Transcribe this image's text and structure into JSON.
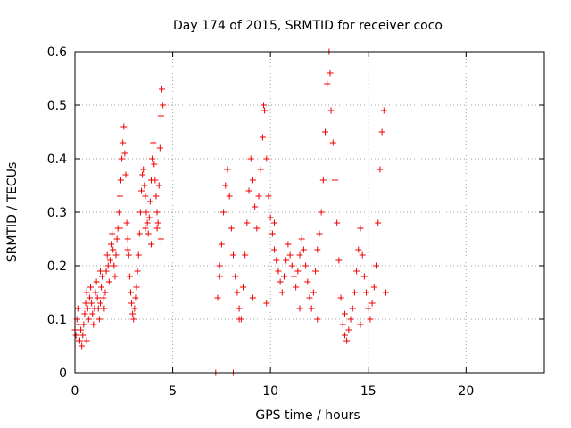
{
  "chart_data": {
    "type": "scatter",
    "title": "Day 174 of 2015, SRMTID for receiver coco",
    "xlabel": "GPS time / hours",
    "ylabel": "SRMTID / TECUs",
    "xlim": [
      0,
      24
    ],
    "ylim": [
      0,
      0.6
    ],
    "xticks": [
      0,
      5,
      10,
      15,
      20
    ],
    "xtick_labels": [
      "0",
      "5",
      "10",
      "15",
      "20"
    ],
    "yticks": [
      0,
      0.1,
      0.2,
      0.3,
      0.4,
      0.5,
      0.6
    ],
    "ytick_labels": [
      "0",
      "0.1",
      "0.2",
      "0.3",
      "0.4",
      "0.5",
      "0.6"
    ],
    "grid": true,
    "marker": "plus",
    "color": "#ee0000",
    "series": [
      {
        "name": "SRMTID",
        "points": [
          [
            0.0,
            0.08
          ],
          [
            0.05,
            0.07
          ],
          [
            0.1,
            0.1
          ],
          [
            0.15,
            0.12
          ],
          [
            0.2,
            0.09
          ],
          [
            0.25,
            0.06
          ],
          [
            0.3,
            0.08
          ],
          [
            0.35,
            0.05
          ],
          [
            0.4,
            0.07
          ],
          [
            0.45,
            0.09
          ],
          [
            0.5,
            0.11
          ],
          [
            0.55,
            0.13
          ],
          [
            0.6,
            0.15
          ],
          [
            0.65,
            0.12
          ],
          [
            0.7,
            0.1
          ],
          [
            0.75,
            0.14
          ],
          [
            0.8,
            0.16
          ],
          [
            0.85,
            0.13
          ],
          [
            0.9,
            0.11
          ],
          [
            0.95,
            0.09
          ],
          [
            1.0,
            0.12
          ],
          [
            1.05,
            0.15
          ],
          [
            1.1,
            0.17
          ],
          [
            1.15,
            0.14
          ],
          [
            1.2,
            0.12
          ],
          [
            1.25,
            0.1
          ],
          [
            1.3,
            0.13
          ],
          [
            1.35,
            0.16
          ],
          [
            1.4,
            0.18
          ],
          [
            1.45,
            0.14
          ],
          [
            1.5,
            0.12
          ],
          [
            1.55,
            0.15
          ],
          [
            1.6,
            0.19
          ],
          [
            1.65,
            0.22
          ],
          [
            1.7,
            0.2
          ],
          [
            1.75,
            0.17
          ],
          [
            1.8,
            0.21
          ],
          [
            1.85,
            0.24
          ],
          [
            1.9,
            0.26
          ],
          [
            1.95,
            0.23
          ],
          [
            2.0,
            0.2
          ],
          [
            2.05,
            0.18
          ],
          [
            2.1,
            0.22
          ],
          [
            2.15,
            0.25
          ],
          [
            2.2,
            0.27
          ],
          [
            2.25,
            0.3
          ],
          [
            2.3,
            0.33
          ],
          [
            2.35,
            0.36
          ],
          [
            2.4,
            0.4
          ],
          [
            2.45,
            0.43
          ],
          [
            2.5,
            0.46
          ],
          [
            2.55,
            0.41
          ],
          [
            2.6,
            0.37
          ],
          [
            2.65,
            0.28
          ],
          [
            2.7,
            0.25
          ],
          [
            2.75,
            0.22
          ],
          [
            2.8,
            0.18
          ],
          [
            2.85,
            0.15
          ],
          [
            2.9,
            0.13
          ],
          [
            2.95,
            0.11
          ],
          [
            3.0,
            0.1
          ],
          [
            3.05,
            0.12
          ],
          [
            3.1,
            0.14
          ],
          [
            3.15,
            0.16
          ],
          [
            3.2,
            0.19
          ],
          [
            3.25,
            0.22
          ],
          [
            3.3,
            0.26
          ],
          [
            3.35,
            0.3
          ],
          [
            3.4,
            0.34
          ],
          [
            3.45,
            0.37
          ],
          [
            3.5,
            0.38
          ],
          [
            3.55,
            0.35
          ],
          [
            3.6,
            0.33
          ],
          [
            3.65,
            0.3
          ],
          [
            3.7,
            0.28
          ],
          [
            3.75,
            0.26
          ],
          [
            3.8,
            0.29
          ],
          [
            3.85,
            0.32
          ],
          [
            3.9,
            0.36
          ],
          [
            3.95,
            0.4
          ],
          [
            4.0,
            0.43
          ],
          [
            4.05,
            0.39
          ],
          [
            4.1,
            0.36
          ],
          [
            4.15,
            0.33
          ],
          [
            4.2,
            0.3
          ],
          [
            4.25,
            0.28
          ],
          [
            4.3,
            0.35
          ],
          [
            4.35,
            0.42
          ],
          [
            4.4,
            0.48
          ],
          [
            4.45,
            0.53
          ],
          [
            4.5,
            0.5
          ],
          [
            4.4,
            0.25
          ],
          [
            4.2,
            0.27
          ],
          [
            3.9,
            0.24
          ],
          [
            3.6,
            0.27
          ],
          [
            2.7,
            0.23
          ],
          [
            2.3,
            0.27
          ],
          [
            1.3,
            0.19
          ],
          [
            0.6,
            0.06
          ],
          [
            0.2,
            0.06
          ],
          [
            7.2,
            0.0
          ],
          [
            7.3,
            0.14
          ],
          [
            7.4,
            0.18
          ],
          [
            7.5,
            0.24
          ],
          [
            7.6,
            0.3
          ],
          [
            7.7,
            0.35
          ],
          [
            7.8,
            0.38
          ],
          [
            7.9,
            0.33
          ],
          [
            8.0,
            0.27
          ],
          [
            8.1,
            0.22
          ],
          [
            8.2,
            0.18
          ],
          [
            8.3,
            0.15
          ],
          [
            8.4,
            0.12
          ],
          [
            8.5,
            0.1
          ],
          [
            8.6,
            0.16
          ],
          [
            8.7,
            0.22
          ],
          [
            8.8,
            0.28
          ],
          [
            8.9,
            0.34
          ],
          [
            9.0,
            0.4
          ],
          [
            9.1,
            0.36
          ],
          [
            9.2,
            0.31
          ],
          [
            9.3,
            0.27
          ],
          [
            9.4,
            0.33
          ],
          [
            9.5,
            0.38
          ],
          [
            9.6,
            0.44
          ],
          [
            9.7,
            0.49
          ],
          [
            9.65,
            0.5
          ],
          [
            9.8,
            0.4
          ],
          [
            9.9,
            0.33
          ],
          [
            10.0,
            0.29
          ],
          [
            10.1,
            0.26
          ],
          [
            10.2,
            0.23
          ],
          [
            10.3,
            0.21
          ],
          [
            10.4,
            0.19
          ],
          [
            10.5,
            0.17
          ],
          [
            10.6,
            0.15
          ],
          [
            10.7,
            0.18
          ],
          [
            10.8,
            0.21
          ],
          [
            10.9,
            0.24
          ],
          [
            11.0,
            0.22
          ],
          [
            11.1,
            0.2
          ],
          [
            11.2,
            0.18
          ],
          [
            11.3,
            0.16
          ],
          [
            11.4,
            0.19
          ],
          [
            11.5,
            0.22
          ],
          [
            11.6,
            0.25
          ],
          [
            11.7,
            0.23
          ],
          [
            11.8,
            0.2
          ],
          [
            11.9,
            0.17
          ],
          [
            12.0,
            0.14
          ],
          [
            12.1,
            0.12
          ],
          [
            12.2,
            0.15
          ],
          [
            12.3,
            0.19
          ],
          [
            12.4,
            0.23
          ],
          [
            12.5,
            0.26
          ],
          [
            12.6,
            0.3
          ],
          [
            12.7,
            0.36
          ],
          [
            12.8,
            0.45
          ],
          [
            12.9,
            0.54
          ],
          [
            13.0,
            0.6
          ],
          [
            13.05,
            0.56
          ],
          [
            13.1,
            0.49
          ],
          [
            13.2,
            0.43
          ],
          [
            13.3,
            0.36
          ],
          [
            13.4,
            0.28
          ],
          [
            13.5,
            0.21
          ],
          [
            13.6,
            0.14
          ],
          [
            13.7,
            0.09
          ],
          [
            13.8,
            0.07
          ],
          [
            13.9,
            0.06
          ],
          [
            14.0,
            0.08
          ],
          [
            14.1,
            0.1
          ],
          [
            14.2,
            0.12
          ],
          [
            14.3,
            0.15
          ],
          [
            14.4,
            0.19
          ],
          [
            14.5,
            0.23
          ],
          [
            14.6,
            0.27
          ],
          [
            14.7,
            0.22
          ],
          [
            14.8,
            0.18
          ],
          [
            14.9,
            0.15
          ],
          [
            15.0,
            0.12
          ],
          [
            15.1,
            0.1
          ],
          [
            15.2,
            0.13
          ],
          [
            15.3,
            0.16
          ],
          [
            15.4,
            0.2
          ],
          [
            15.5,
            0.28
          ],
          [
            15.6,
            0.38
          ],
          [
            15.7,
            0.45
          ],
          [
            15.8,
            0.49
          ],
          [
            15.9,
            0.15
          ],
          [
            8.1,
            0.0
          ],
          [
            8.4,
            0.1
          ],
          [
            9.1,
            0.14
          ],
          [
            9.8,
            0.13
          ],
          [
            11.5,
            0.12
          ],
          [
            12.4,
            0.1
          ],
          [
            13.8,
            0.11
          ],
          [
            14.6,
            0.09
          ],
          [
            7.4,
            0.2
          ],
          [
            10.2,
            0.28
          ]
        ]
      }
    ]
  }
}
